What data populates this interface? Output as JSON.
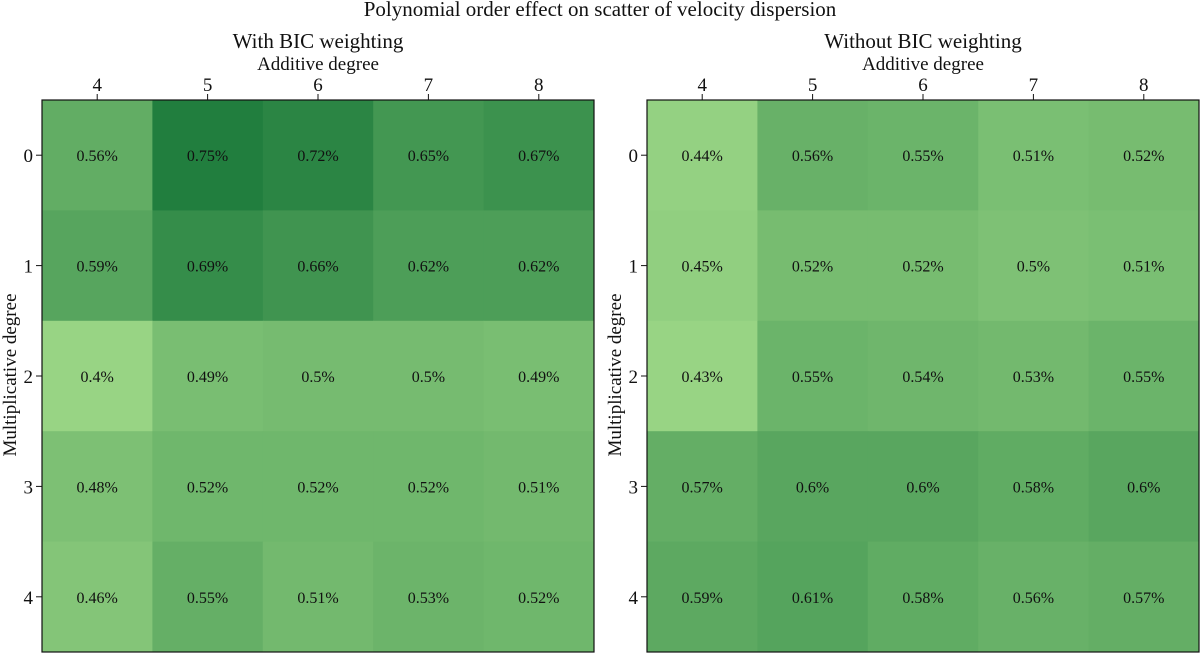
{
  "chart_data": {
    "type": "heatmap",
    "title": "Polynomial order effect on scatter of velocity dispersion",
    "colormap": {
      "low": "#98d484",
      "high": "#217e3e"
    },
    "panels": [
      {
        "title": "With BIC weighting",
        "xlabel": "Additive degree",
        "ylabel": "Multiplicative degree",
        "x": [
          "4",
          "5",
          "6",
          "7",
          "8"
        ],
        "y": [
          "0",
          "1",
          "2",
          "3",
          "4"
        ],
        "values": [
          [
            0.56,
            0.75,
            0.72,
            0.65,
            0.67
          ],
          [
            0.59,
            0.69,
            0.66,
            0.62,
            0.62
          ],
          [
            0.4,
            0.49,
            0.5,
            0.5,
            0.49
          ],
          [
            0.48,
            0.52,
            0.52,
            0.52,
            0.51
          ],
          [
            0.46,
            0.55,
            0.51,
            0.53,
            0.52
          ]
        ],
        "labels": [
          [
            "0.56%",
            "0.75%",
            "0.72%",
            "0.65%",
            "0.67%"
          ],
          [
            "0.59%",
            "0.69%",
            "0.66%",
            "0.62%",
            "0.62%"
          ],
          [
            "0.4%",
            "0.49%",
            "0.5%",
            "0.5%",
            "0.49%"
          ],
          [
            "0.48%",
            "0.52%",
            "0.52%",
            "0.52%",
            "0.51%"
          ],
          [
            "0.46%",
            "0.55%",
            "0.51%",
            "0.53%",
            "0.52%"
          ]
        ],
        "vmin": 0.4,
        "vmax": 0.75
      },
      {
        "title": "Without BIC weighting",
        "xlabel": "Additive degree",
        "ylabel": "Multiplicative degree",
        "x": [
          "4",
          "5",
          "6",
          "7",
          "8"
        ],
        "y": [
          "0",
          "1",
          "2",
          "3",
          "4"
        ],
        "values": [
          [
            0.44,
            0.56,
            0.55,
            0.51,
            0.52
          ],
          [
            0.45,
            0.52,
            0.52,
            0.5,
            0.51
          ],
          [
            0.43,
            0.55,
            0.54,
            0.53,
            0.55
          ],
          [
            0.57,
            0.6,
            0.6,
            0.58,
            0.6
          ],
          [
            0.59,
            0.61,
            0.58,
            0.56,
            0.57
          ]
        ],
        "labels": [
          [
            "0.44%",
            "0.56%",
            "0.55%",
            "0.51%",
            "0.52%"
          ],
          [
            "0.45%",
            "0.52%",
            "0.52%",
            "0.5%",
            "0.51%"
          ],
          [
            "0.43%",
            "0.55%",
            "0.54%",
            "0.53%",
            "0.55%"
          ],
          [
            "0.57%",
            "0.6%",
            "0.6%",
            "0.58%",
            "0.6%"
          ],
          [
            "0.59%",
            "0.61%",
            "0.58%",
            "0.56%",
            "0.57%"
          ]
        ],
        "vmin": 0.43,
        "vmax": 0.75
      }
    ]
  }
}
